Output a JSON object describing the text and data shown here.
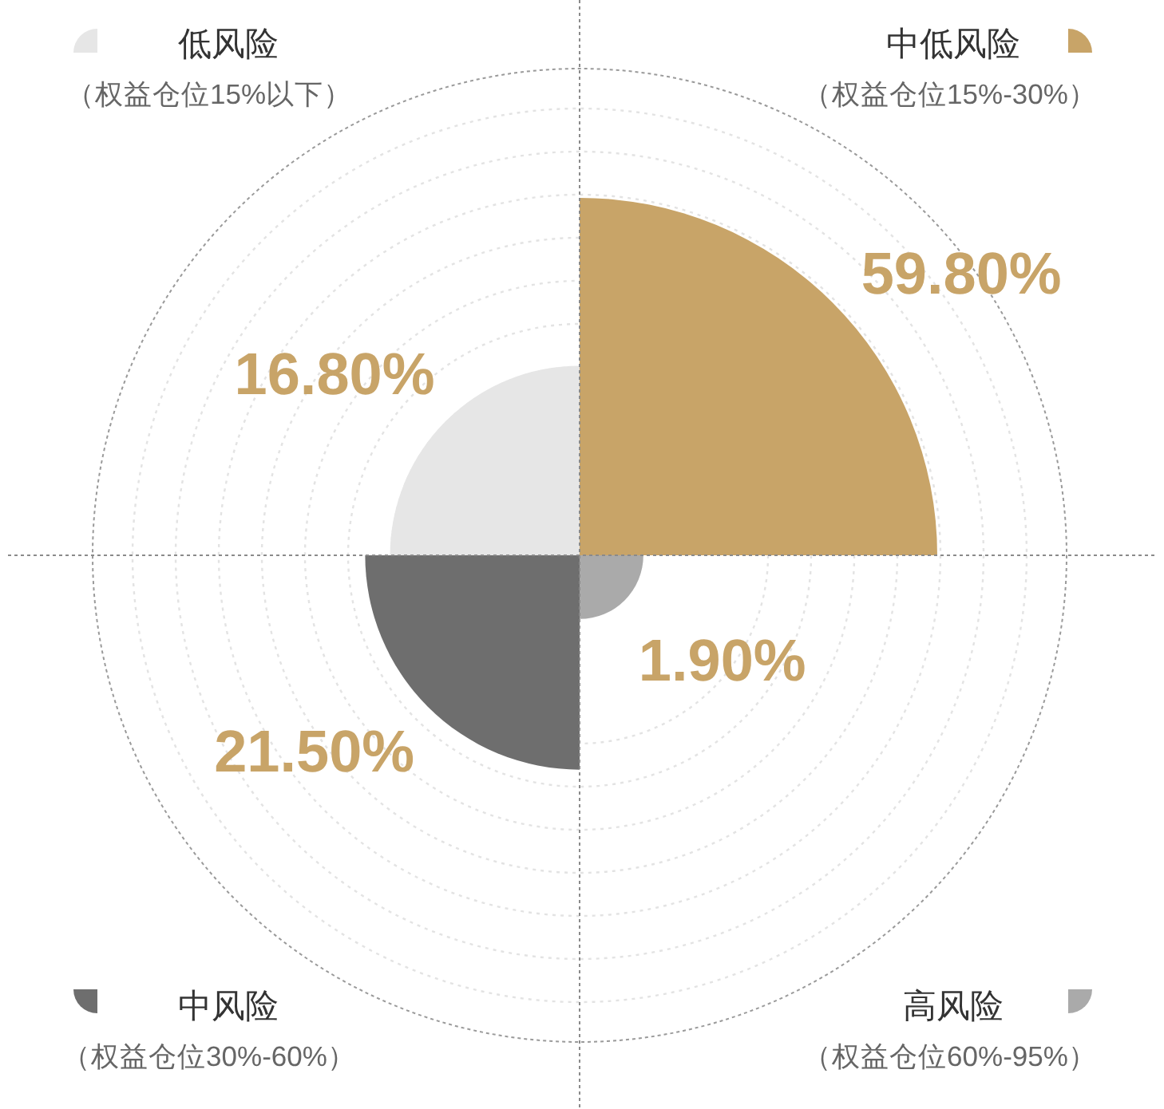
{
  "chart_data": {
    "type": "other",
    "categories": [
      "中低风险",
      "高风险",
      "中风险",
      "低风险"
    ],
    "values": [
      59.8,
      1.9,
      21.5,
      16.8
    ],
    "colors": [
      "#c8a468",
      "#aaaaaa",
      "#6e6e6e",
      "#e6e6e6"
    ],
    "value_labels": [
      "59.80%",
      "1.90%",
      "21.50%",
      "16.80%"
    ],
    "annotations": [
      "（权益仓位15%-30%）",
      "（权益仓位60%-95%）",
      "（权益仓位30%-60%）",
      "（权益仓位15%以下）"
    ]
  }
}
